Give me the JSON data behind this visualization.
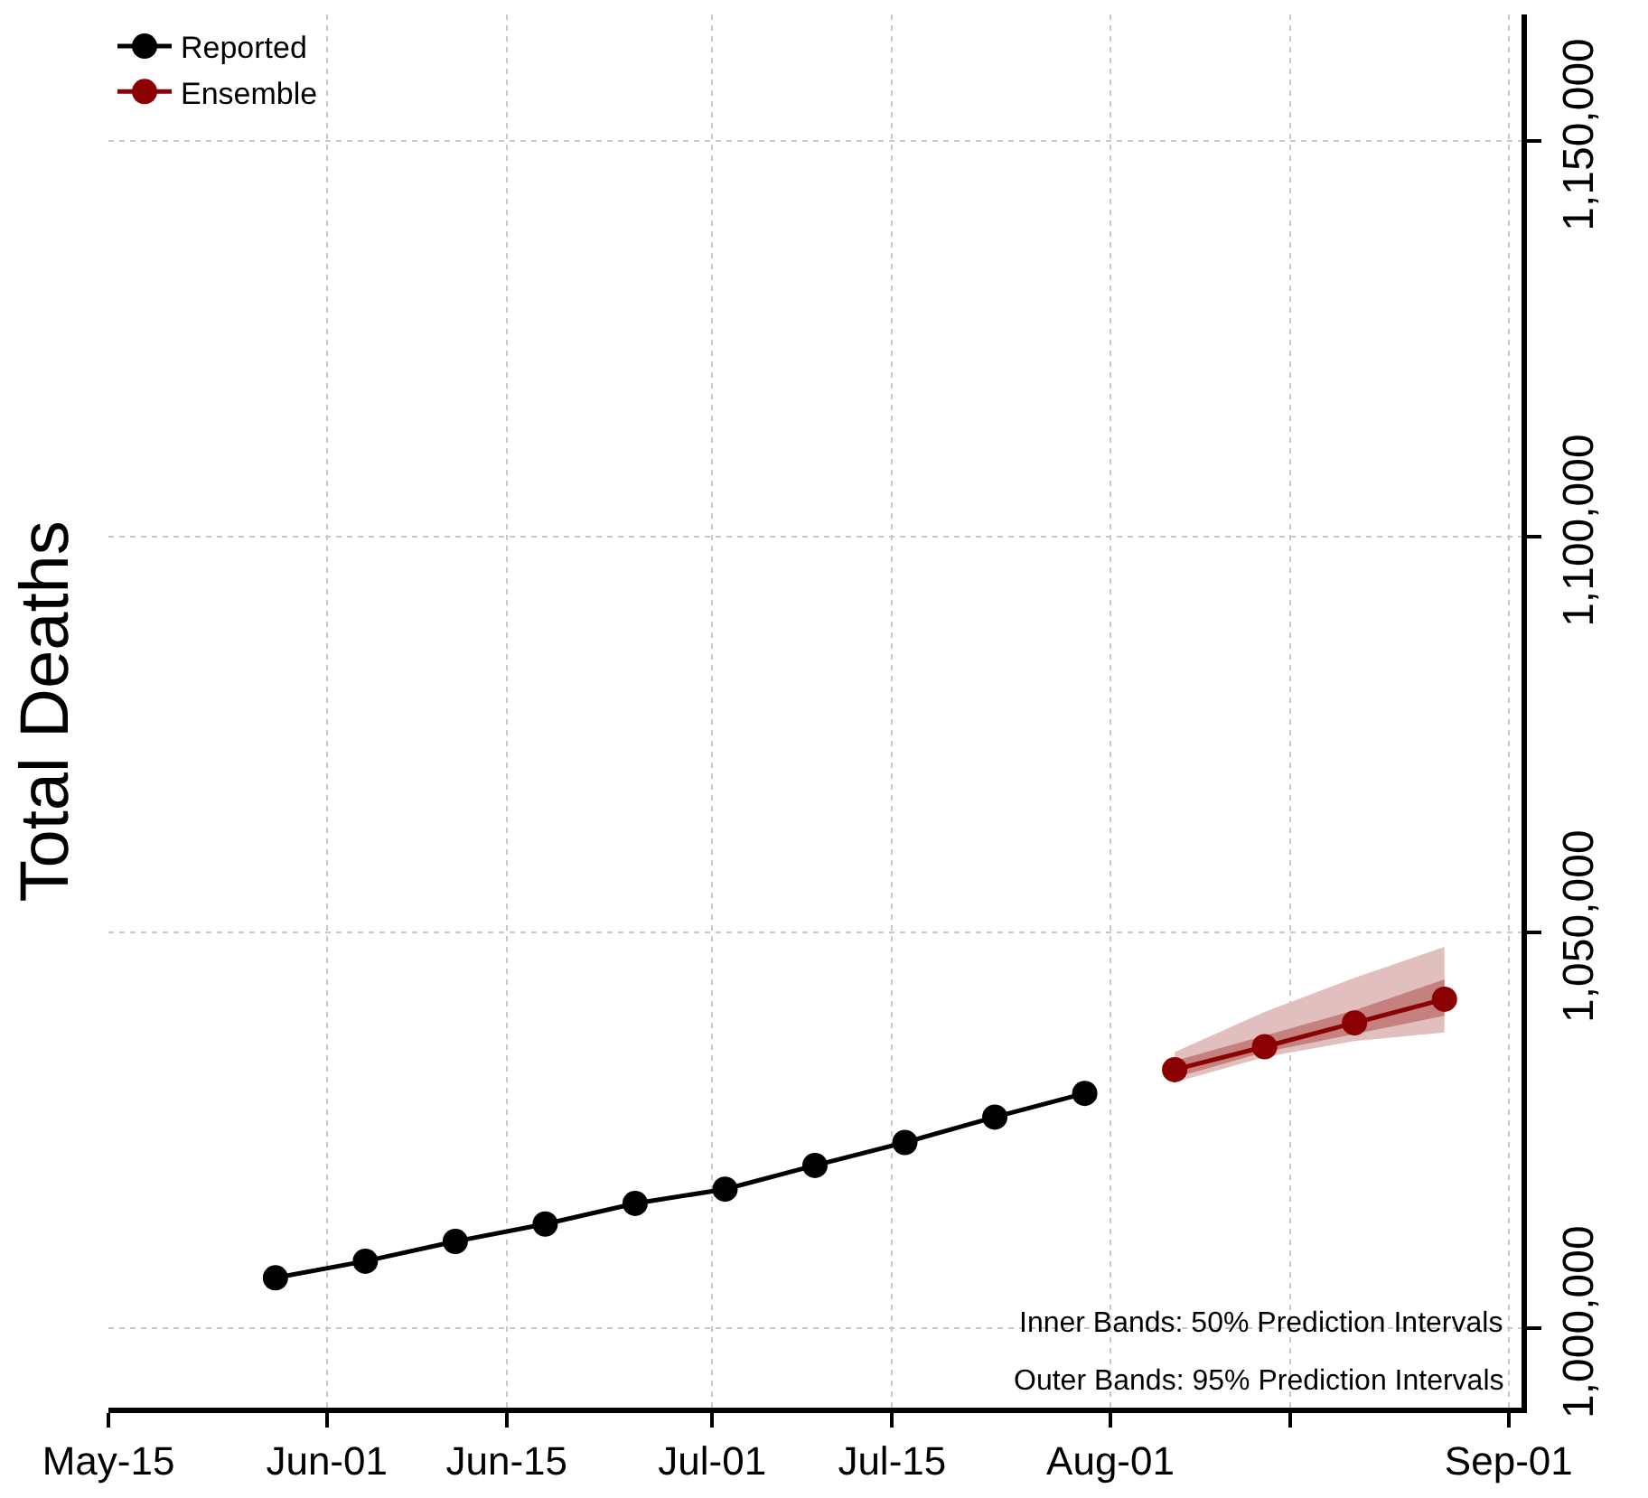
{
  "chart_data": {
    "type": "line",
    "ylabel": "Total Deaths",
    "xlim": [
      "--05-15",
      "--09-02"
    ],
    "xticks": [
      {
        "value": "--05-15",
        "label": "May-15"
      },
      {
        "value": "--06-01",
        "label": "Jun-01"
      },
      {
        "value": "--06-15",
        "label": "Jun-15"
      },
      {
        "value": "--07-01",
        "label": "Jul-01"
      },
      {
        "value": "--07-15",
        "label": "Jul-15"
      },
      {
        "value": "--08-01",
        "label": "Aug-01"
      },
      {
        "value": "--08-15",
        "label": null
      },
      {
        "value": "--09-01",
        "label": "Sep-01"
      }
    ],
    "ylim": [
      990000,
      1166000
    ],
    "yticks": [
      {
        "value": 1000000,
        "label": "1,000,000"
      },
      {
        "value": 1050000,
        "label": "1,050,000"
      },
      {
        "value": 1100000,
        "label": "1,100,000"
      },
      {
        "value": 1150000,
        "label": "1,150,000"
      }
    ],
    "grid": true,
    "legend": "top left",
    "marker": "circle",
    "line_style": "solid",
    "series": [
      {
        "name": "Reported",
        "color": "#000000",
        "x": [
          "--05-28",
          "--06-04",
          "--06-11",
          "--06-18",
          "--06-25",
          "--07-02",
          "--07-09",
          "--07-16",
          "--07-23",
          "--07-30"
        ],
        "values": [
          1006400,
          1008500,
          1011000,
          1013200,
          1015800,
          1017600,
          1020600,
          1023500,
          1026700,
          1029700
        ]
      },
      {
        "name": "Ensemble",
        "color": "#8b0000",
        "x": [
          "--08-06",
          "--08-13",
          "--08-20",
          "--08-27"
        ],
        "values": [
          1032700,
          1035600,
          1038600,
          1041600
        ],
        "lower": [
          1031100,
          1034300,
          1036300,
          1037400
        ],
        "upper": [
          1034900,
          1040000,
          1044300,
          1048200
        ]
      },
      {
        "color": "#8b0000",
        "x": [
          "--08-06",
          "--08-13",
          "--08-20",
          "--08-27"
        ],
        "values": [
          null,
          null,
          null,
          null
        ],
        "lower": [
          1031700,
          1034900,
          1037200,
          1039500
        ],
        "upper": [
          1033800,
          1037000,
          1040200,
          1044100
        ]
      }
    ],
    "annotations": [
      "Inner Bands: 50% Prediction Intervals",
      "Outer Bands: 95% Prediction Intervals"
    ]
  }
}
